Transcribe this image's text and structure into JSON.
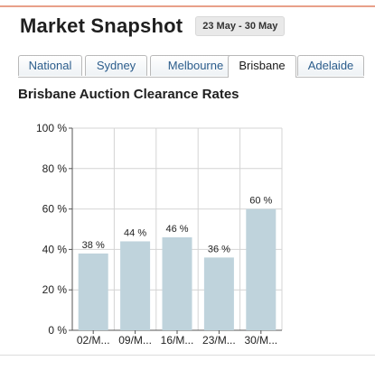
{
  "header": {
    "title": "Market Snapshot",
    "date_range": "23 May - 30 May"
  },
  "tabs": [
    {
      "label": "National",
      "active": false
    },
    {
      "label": "Sydney",
      "active": false
    },
    {
      "label": "Melbourne",
      "active": false
    },
    {
      "label": "Brisbane",
      "active": true
    },
    {
      "label": "Adelaide",
      "active": false
    }
  ],
  "chart_data": {
    "type": "bar",
    "title": "Brisbane Auction Clearance Rates",
    "categories": [
      "02/M...",
      "09/M...",
      "16/M...",
      "23/M...",
      "30/M..."
    ],
    "values": [
      38,
      44,
      46,
      36,
      60
    ],
    "value_labels": [
      "38 %",
      "44 %",
      "46 %",
      "36 %",
      "60 %"
    ],
    "y_ticks": [
      0,
      20,
      40,
      60,
      80,
      100
    ],
    "y_tick_labels": [
      "0 %",
      "20 %",
      "40 %",
      "60 %",
      "80 %",
      "100 %"
    ],
    "ylim": [
      0,
      100
    ],
    "grid": true,
    "bar_color": "#bfd3dc"
  }
}
